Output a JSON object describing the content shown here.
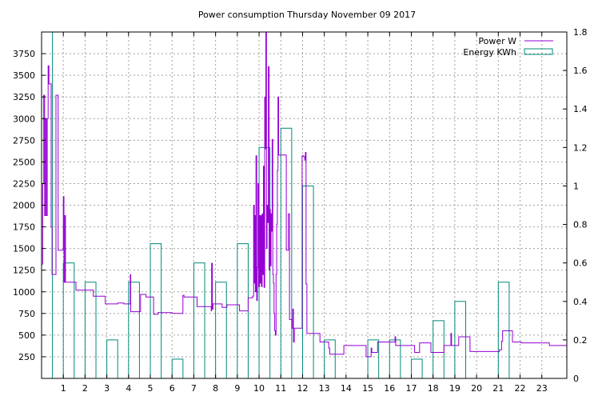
{
  "chart_data": {
    "type": "line",
    "title": "Power consumption Thursday November 09 2017",
    "x_ticks": [
      1,
      2,
      3,
      4,
      5,
      6,
      7,
      8,
      9,
      10,
      11,
      12,
      13,
      14,
      15,
      16,
      17,
      18,
      19,
      20,
      21,
      22,
      23
    ],
    "xlim": [
      0,
      24.15
    ],
    "ylim_left": [
      0,
      4000
    ],
    "ylim_right": [
      0,
      1.8
    ],
    "y_left_ticks": [
      250,
      500,
      750,
      1000,
      1250,
      1500,
      1750,
      2000,
      2250,
      2500,
      2750,
      3000,
      3250,
      3500,
      3750
    ],
    "y_right_ticks": [
      0,
      0.2,
      0.4,
      0.6,
      0.8,
      1,
      1.2,
      1.4,
      1.6,
      1.8
    ],
    "grid": true,
    "legend_position": "top-right",
    "series": [
      {
        "name": "Power W",
        "axis": "left",
        "color": "#9400d3",
        "style": "step",
        "points": [
          [
            0.0,
            1320
          ],
          [
            0.05,
            2250
          ],
          [
            0.1,
            3270
          ],
          [
            0.14,
            1880
          ],
          [
            0.18,
            3000
          ],
          [
            0.22,
            1880
          ],
          [
            0.26,
            3000
          ],
          [
            0.3,
            3610
          ],
          [
            0.34,
            3400
          ],
          [
            0.4,
            3400
          ],
          [
            0.44,
            1750
          ],
          [
            0.48,
            1200
          ],
          [
            0.62,
            1200
          ],
          [
            0.66,
            3270
          ],
          [
            0.74,
            3270
          ],
          [
            0.76,
            1480
          ],
          [
            0.95,
            1480
          ],
          [
            1.0,
            2100
          ],
          [
            1.03,
            1110
          ],
          [
            1.07,
            1880
          ],
          [
            1.1,
            1110
          ],
          [
            1.55,
            1110
          ],
          [
            1.58,
            1020
          ],
          [
            2.35,
            1020
          ],
          [
            2.38,
            950
          ],
          [
            2.9,
            950
          ],
          [
            2.93,
            860
          ],
          [
            3.45,
            860
          ],
          [
            3.5,
            870
          ],
          [
            3.75,
            870
          ],
          [
            3.78,
            860
          ],
          [
            4.05,
            860
          ],
          [
            4.08,
            1200
          ],
          [
            4.1,
            770
          ],
          [
            4.5,
            770
          ],
          [
            4.55,
            970
          ],
          [
            4.75,
            970
          ],
          [
            4.8,
            940
          ],
          [
            5.1,
            940
          ],
          [
            5.15,
            740
          ],
          [
            5.3,
            740
          ],
          [
            5.35,
            760
          ],
          [
            5.95,
            760
          ],
          [
            6.0,
            750
          ],
          [
            6.45,
            750
          ],
          [
            6.5,
            960
          ],
          [
            6.55,
            940
          ],
          [
            7.1,
            940
          ],
          [
            7.15,
            830
          ],
          [
            7.75,
            830
          ],
          [
            7.8,
            780
          ],
          [
            7.82,
            1330
          ],
          [
            7.85,
            800
          ],
          [
            7.88,
            860
          ],
          [
            8.25,
            860
          ],
          [
            8.3,
            820
          ],
          [
            8.5,
            820
          ],
          [
            8.52,
            850
          ],
          [
            9.05,
            850
          ],
          [
            9.1,
            780
          ],
          [
            9.45,
            780
          ],
          [
            9.5,
            930
          ],
          [
            9.7,
            950
          ],
          [
            9.75,
            2000
          ],
          [
            9.78,
            1100
          ],
          [
            9.8,
            1880
          ],
          [
            9.83,
            1000
          ],
          [
            9.86,
            2570
          ],
          [
            9.89,
            900
          ],
          [
            9.92,
            1280
          ],
          [
            9.95,
            2250
          ],
          [
            9.98,
            1060
          ],
          [
            10.02,
            1880
          ],
          [
            10.05,
            1100
          ],
          [
            10.08,
            1880
          ],
          [
            10.11,
            1060
          ],
          [
            10.14,
            1900
          ],
          [
            10.17,
            1200
          ],
          [
            10.2,
            2450
          ],
          [
            10.23,
            1050
          ],
          [
            10.26,
            3250
          ],
          [
            10.28,
            2650
          ],
          [
            10.31,
            4000
          ],
          [
            10.34,
            1500
          ],
          [
            10.37,
            2000
          ],
          [
            10.4,
            1800
          ],
          [
            10.43,
            3600
          ],
          [
            10.46,
            1250
          ],
          [
            10.49,
            1950
          ],
          [
            10.52,
            1300
          ],
          [
            10.55,
            1900
          ],
          [
            10.58,
            1700
          ],
          [
            10.6,
            2760
          ],
          [
            10.63,
            1200
          ],
          [
            10.66,
            1100
          ],
          [
            10.69,
            750
          ],
          [
            10.72,
            550
          ],
          [
            10.75,
            500
          ],
          [
            10.78,
            1200
          ],
          [
            10.81,
            1780
          ],
          [
            10.84,
            2400
          ],
          [
            10.87,
            3250
          ],
          [
            10.9,
            2580
          ],
          [
            11.2,
            2580
          ],
          [
            11.25,
            1480
          ],
          [
            11.35,
            1900
          ],
          [
            11.4,
            680
          ],
          [
            11.48,
            680
          ],
          [
            11.5,
            580
          ],
          [
            11.55,
            800
          ],
          [
            11.58,
            420
          ],
          [
            11.62,
            580
          ],
          [
            11.95,
            580
          ],
          [
            11.98,
            2570
          ],
          [
            12.05,
            2560
          ],
          [
            12.1,
            2520
          ],
          [
            12.13,
            2610
          ],
          [
            12.16,
            1090
          ],
          [
            12.2,
            520
          ],
          [
            12.75,
            520
          ],
          [
            12.8,
            420
          ],
          [
            13.15,
            420
          ],
          [
            13.2,
            350
          ],
          [
            13.25,
            280
          ],
          [
            13.85,
            280
          ],
          [
            13.9,
            380
          ],
          [
            14.9,
            380
          ],
          [
            14.92,
            250
          ],
          [
            15.1,
            250
          ],
          [
            15.15,
            350
          ],
          [
            15.18,
            300
          ],
          [
            15.4,
            300
          ],
          [
            15.45,
            420
          ],
          [
            16.2,
            420
          ],
          [
            16.25,
            480
          ],
          [
            16.28,
            380
          ],
          [
            17.1,
            380
          ],
          [
            17.15,
            300
          ],
          [
            17.35,
            300
          ],
          [
            17.38,
            410
          ],
          [
            17.85,
            410
          ],
          [
            17.9,
            300
          ],
          [
            18.45,
            300
          ],
          [
            18.5,
            380
          ],
          [
            18.8,
            380
          ],
          [
            18.82,
            520
          ],
          [
            18.85,
            380
          ],
          [
            19.15,
            380
          ],
          [
            19.18,
            480
          ],
          [
            19.65,
            480
          ],
          [
            19.7,
            310
          ],
          [
            20.95,
            310
          ],
          [
            21.05,
            330
          ],
          [
            21.15,
            430
          ],
          [
            21.2,
            550
          ],
          [
            21.6,
            550
          ],
          [
            21.65,
            420
          ],
          [
            22.0,
            420
          ],
          [
            22.05,
            410
          ],
          [
            23.3,
            410
          ],
          [
            23.35,
            380
          ],
          [
            24.15,
            380
          ]
        ]
      },
      {
        "name": "Energy KWh",
        "axis": "right",
        "color": "#008b7a",
        "style": "boxes",
        "bars": [
          [
            0.0,
            1.8
          ],
          [
            1.0,
            0.6
          ],
          [
            2.0,
            0.5
          ],
          [
            3.0,
            0.2
          ],
          [
            4.0,
            0.5
          ],
          [
            5.0,
            0.7
          ],
          [
            6.0,
            0.1
          ],
          [
            7.0,
            0.6
          ],
          [
            8.0,
            0.5
          ],
          [
            9.0,
            0.7
          ],
          [
            10.0,
            1.2
          ],
          [
            11.0,
            1.3
          ],
          [
            12.0,
            1.0
          ],
          [
            13.0,
            0.2
          ],
          [
            15.0,
            0.2
          ],
          [
            16.0,
            0.2
          ],
          [
            17.0,
            0.1
          ],
          [
            18.0,
            0.3
          ],
          [
            19.0,
            0.4
          ],
          [
            21.0,
            0.5
          ]
        ]
      }
    ]
  }
}
